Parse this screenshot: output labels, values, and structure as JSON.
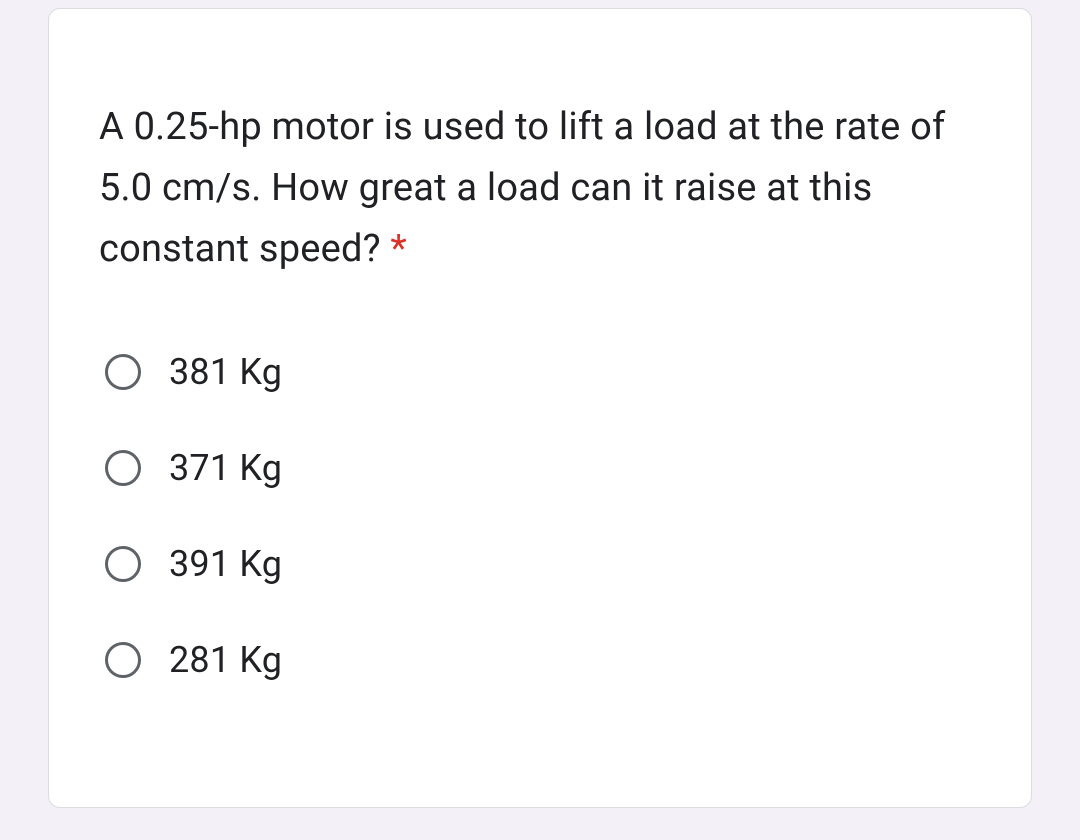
{
  "card": {
    "question_text": "A 0.25-hp motor is used to lift a load at the rate of 5.0 cm/s. How great a load can it raise at this constant speed? ",
    "required_mark": "*",
    "options": [
      {
        "label": "381 Kg"
      },
      {
        "label": "371 Kg"
      },
      {
        "label": "391 Kg"
      },
      {
        "label": "281 Kg"
      }
    ]
  },
  "style": {
    "background_color": "#f3f0f7",
    "card_background": "#ffffff",
    "card_border_color": "#dadce0",
    "card_border_radius": 12,
    "question_font_size": 38,
    "question_color": "#202124",
    "required_color": "#d93025",
    "option_font_size": 36,
    "option_color": "#202124",
    "radio_size": 36,
    "radio_border_color": "#5f6368",
    "radio_border_width": 3,
    "option_gap": 54
  }
}
